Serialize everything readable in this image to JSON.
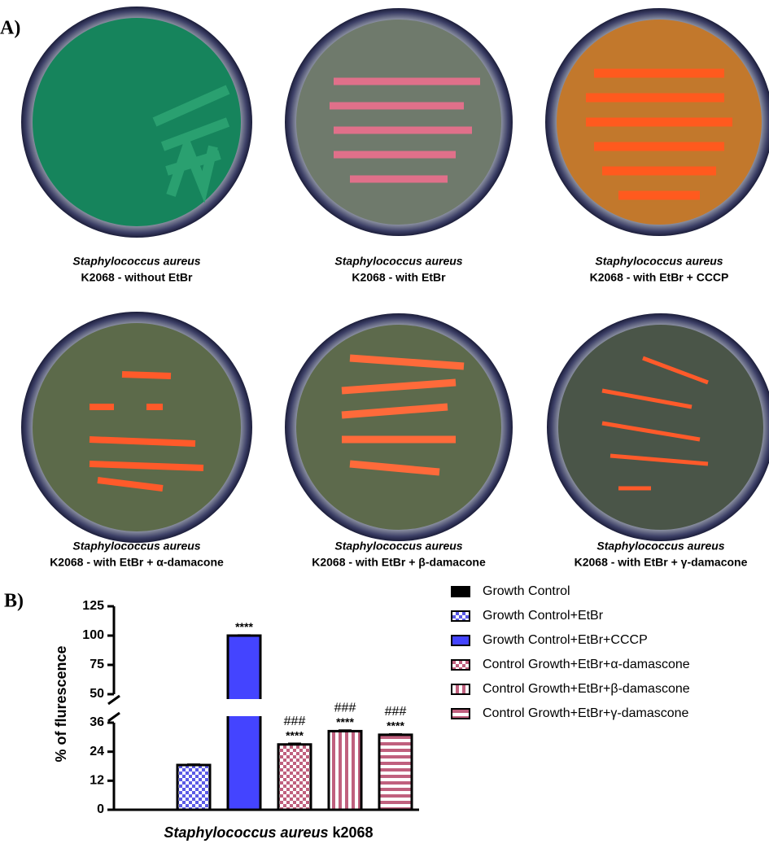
{
  "panel_a": {
    "label": "A)",
    "plates": [
      {
        "species": "Staphylococcus aureus",
        "condition": "K2068 - without EtBr"
      },
      {
        "species": "Staphylococcus aureus",
        "condition": "K2068 - with EtBr"
      },
      {
        "species": "Staphylococcus aureus",
        "condition": "K2068 - with EtBr + CCCP"
      },
      {
        "species": "Staphylococcus aureus",
        "condition": "K2068 - with EtBr + α-damacone"
      },
      {
        "species": "Staphylococcus aureus",
        "condition": "K2068 - with EtBr + β-damacone"
      },
      {
        "species": "Staphylococcus aureus",
        "condition": "K2068 - with EtBr + γ-damacone"
      }
    ]
  },
  "chart_data": {
    "type": "bar",
    "panel_label": "B)",
    "y_label": "% of flurescence",
    "x_label_species": "Staphylococcus aureus",
    "x_label_strain": "k2068",
    "ylim": [
      0,
      125
    ],
    "ybreak": [
      36,
      50
    ],
    "yticks": [
      0,
      12,
      24,
      36,
      50,
      75,
      100,
      125
    ],
    "series": [
      {
        "name": "Growth Control",
        "color": "#000000",
        "pattern": "solid",
        "values": [
          0
        ],
        "errors": [
          0
        ]
      },
      {
        "name": "Growth Control+EtBr",
        "color": "#5a5ae6",
        "pattern": "checker",
        "values": [
          18.5
        ],
        "errors": [
          0.3
        ]
      },
      {
        "name": "Growth Control+EtBr+CCCP",
        "color": "#4444ff",
        "pattern": "solid",
        "values": [
          100
        ],
        "errors": [
          0.4
        ],
        "stars": "****"
      },
      {
        "name": "Control Growth+EtBr+α-damascone",
        "color": "#c0607e",
        "pattern": "checker",
        "values": [
          27
        ],
        "errors": [
          0.4
        ],
        "stars": "****",
        "hashes": "###"
      },
      {
        "name": "Control Growth+EtBr+β-damascone",
        "color": "#c0607e",
        "pattern": "vstripe",
        "values": [
          32.5
        ],
        "errors": [
          0.4
        ],
        "stars": "****",
        "hashes": "###"
      },
      {
        "name": "Control Growth+EtBr+γ-damascone",
        "color": "#c0607e",
        "pattern": "hstripe",
        "values": [
          31
        ],
        "errors": [
          0.3
        ],
        "stars": "****",
        "hashes": "###"
      }
    ]
  }
}
